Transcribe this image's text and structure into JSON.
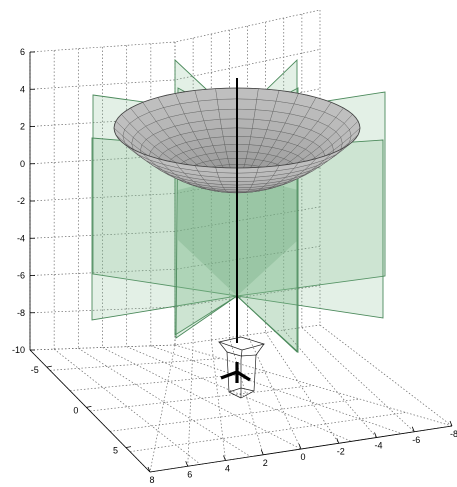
{
  "chart_data": {
    "type": "surface3d",
    "title": "",
    "xlabel": "",
    "ylabel": "",
    "zlabel": "",
    "grid": true,
    "z_ticks": [
      "6",
      "4",
      "2",
      "0",
      "-2",
      "-4",
      "-6",
      "-8",
      "-10"
    ],
    "left_axis_ticks": [
      "-5",
      "0",
      "5"
    ],
    "front_axis_ticks": [
      "8",
      "6",
      "4",
      "2",
      "0",
      "-2",
      "-4",
      "-6",
      "-8"
    ],
    "zlim": [
      -10,
      6
    ],
    "surfaces": [
      {
        "kind": "paraboloid bowl",
        "color": "#a8a8a8",
        "z_rim": 3,
        "z_bottom": 0
      }
    ],
    "planes": {
      "count": 4,
      "color": "#7fb98f",
      "z_range": [
        -8,
        4
      ],
      "intersection_z": -7
    },
    "axis_line": {
      "z_range": [
        -10,
        5
      ],
      "color": "#000000"
    }
  }
}
